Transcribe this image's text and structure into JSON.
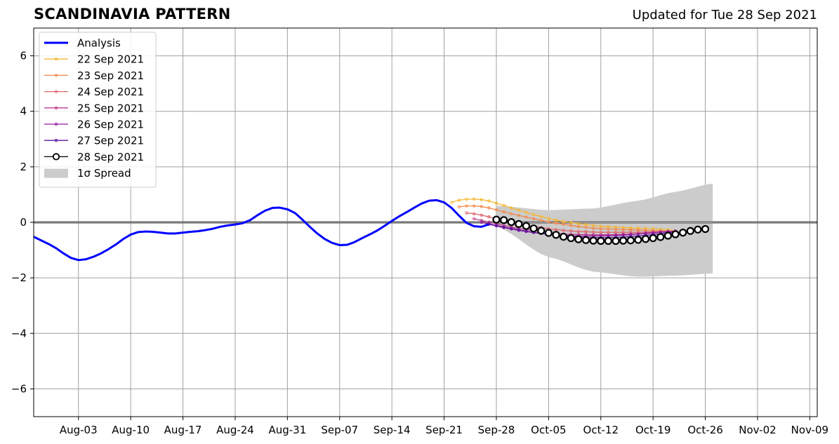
{
  "header": {
    "title": "SCANDINAVIA PATTERN",
    "updated": "Updated for Tue 28 Sep 2021"
  },
  "colors": {
    "analysis": "#0000ff",
    "spread": "#cccccc",
    "grid": "#a0a0a0",
    "zero_line": "#555555"
  },
  "chart_data": {
    "type": "line",
    "title": "SCANDINAVIA PATTERN",
    "xlabel": "",
    "ylabel": "",
    "xlim": [
      "2021-07-28",
      "2021-11-10"
    ],
    "ylim": [
      -7,
      7
    ],
    "grid": true,
    "legend_position": "upper-left",
    "x_ticks": [
      "Aug-03",
      "Aug-10",
      "Aug-17",
      "Aug-24",
      "Aug-31",
      "Sep-07",
      "Sep-14",
      "Sep-21",
      "Sep-28",
      "Oct-05",
      "Oct-12",
      "Oct-19",
      "Oct-26",
      "Nov-02",
      "Nov-09"
    ],
    "x_tick_dates": [
      "2021-08-03",
      "2021-08-10",
      "2021-08-17",
      "2021-08-24",
      "2021-08-31",
      "2021-09-07",
      "2021-09-14",
      "2021-09-21",
      "2021-09-28",
      "2021-10-05",
      "2021-10-12",
      "2021-10-19",
      "2021-10-26",
      "2021-11-02",
      "2021-11-09"
    ],
    "y_ticks": [
      -6,
      -4,
      -2,
      0,
      2,
      4,
      6
    ],
    "y_tick_labels": [
      "−6",
      "−4",
      "−2",
      "0",
      "2",
      "4",
      "6"
    ],
    "analysis": {
      "name": "Analysis",
      "color": "#0000ff",
      "points": [
        [
          "2021-07-28",
          -0.52
        ],
        [
          "2021-07-29",
          -0.65
        ],
        [
          "2021-07-30",
          -0.78
        ],
        [
          "2021-07-31",
          -0.93
        ],
        [
          "2021-08-01",
          -1.12
        ],
        [
          "2021-08-02",
          -1.28
        ],
        [
          "2021-08-03",
          -1.36
        ],
        [
          "2021-08-04",
          -1.33
        ],
        [
          "2021-08-05",
          -1.24
        ],
        [
          "2021-08-06",
          -1.12
        ],
        [
          "2021-08-07",
          -0.97
        ],
        [
          "2021-08-08",
          -0.8
        ],
        [
          "2021-08-09",
          -0.6
        ],
        [
          "2021-08-10",
          -0.44
        ],
        [
          "2021-08-11",
          -0.35
        ],
        [
          "2021-08-12",
          -0.33
        ],
        [
          "2021-08-13",
          -0.34
        ],
        [
          "2021-08-14",
          -0.37
        ],
        [
          "2021-08-15",
          -0.4
        ],
        [
          "2021-08-16",
          -0.4
        ],
        [
          "2021-08-17",
          -0.37
        ],
        [
          "2021-08-18",
          -0.34
        ],
        [
          "2021-08-19",
          -0.32
        ],
        [
          "2021-08-20",
          -0.28
        ],
        [
          "2021-08-21",
          -0.23
        ],
        [
          "2021-08-22",
          -0.16
        ],
        [
          "2021-08-23",
          -0.11
        ],
        [
          "2021-08-24",
          -0.08
        ],
        [
          "2021-08-25",
          -0.03
        ],
        [
          "2021-08-26",
          0.08
        ],
        [
          "2021-08-27",
          0.26
        ],
        [
          "2021-08-28",
          0.42
        ],
        [
          "2021-08-29",
          0.52
        ],
        [
          "2021-08-30",
          0.53
        ],
        [
          "2021-08-31",
          0.47
        ],
        [
          "2021-09-01",
          0.34
        ],
        [
          "2021-09-02",
          0.1
        ],
        [
          "2021-09-03",
          -0.16
        ],
        [
          "2021-09-04",
          -0.4
        ],
        [
          "2021-09-05",
          -0.6
        ],
        [
          "2021-09-06",
          -0.74
        ],
        [
          "2021-09-07",
          -0.82
        ],
        [
          "2021-09-08",
          -0.81
        ],
        [
          "2021-09-09",
          -0.71
        ],
        [
          "2021-09-10",
          -0.57
        ],
        [
          "2021-09-11",
          -0.44
        ],
        [
          "2021-09-12",
          -0.3
        ],
        [
          "2021-09-13",
          -0.13
        ],
        [
          "2021-09-14",
          0.05
        ],
        [
          "2021-09-15",
          0.22
        ],
        [
          "2021-09-16",
          0.37
        ],
        [
          "2021-09-17",
          0.53
        ],
        [
          "2021-09-18",
          0.68
        ],
        [
          "2021-09-19",
          0.78
        ],
        [
          "2021-09-20",
          0.8
        ],
        [
          "2021-09-21",
          0.72
        ],
        [
          "2021-09-22",
          0.52
        ],
        [
          "2021-09-23",
          0.24
        ],
        [
          "2021-09-24",
          -0.02
        ],
        [
          "2021-09-25",
          -0.14
        ],
        [
          "2021-09-26",
          -0.16
        ],
        [
          "2021-09-27",
          -0.07
        ]
      ]
    },
    "forecasts": [
      {
        "name": "22 Sep 2021",
        "color": "#f5b731",
        "start": "2021-09-22",
        "values": [
          0.72,
          0.8,
          0.83,
          0.84,
          0.82,
          0.77,
          0.69,
          0.61,
          0.52,
          0.44,
          0.36,
          0.28,
          0.21,
          0.14,
          0.08,
          0.03,
          -0.01,
          -0.05,
          -0.08,
          -0.11,
          -0.14,
          -0.16,
          -0.17,
          -0.19,
          -0.2,
          -0.21,
          -0.22,
          -0.23,
          -0.25,
          -0.27,
          -0.3
        ]
      },
      {
        "name": "23 Sep 2021",
        "color": "#f1884c",
        "start": "2021-09-23",
        "values": [
          0.56,
          0.59,
          0.59,
          0.57,
          0.52,
          0.45,
          0.38,
          0.31,
          0.25,
          0.19,
          0.13,
          0.07,
          0.02,
          -0.03,
          -0.07,
          -0.11,
          -0.15,
          -0.18,
          -0.21,
          -0.23,
          -0.24,
          -0.25,
          -0.26,
          -0.27,
          -0.28,
          -0.29,
          -0.3,
          -0.31,
          -0.32,
          -0.33
        ]
      },
      {
        "name": "24 Sep 2021",
        "color": "#e1626b",
        "start": "2021-09-24",
        "values": [
          0.34,
          0.31,
          0.26,
          0.2,
          0.13,
          0.07,
          0.01,
          -0.05,
          -0.1,
          -0.15,
          -0.19,
          -0.23,
          -0.26,
          -0.29,
          -0.31,
          -0.33,
          -0.34,
          -0.35,
          -0.36,
          -0.36,
          -0.36,
          -0.36,
          -0.36,
          -0.36,
          -0.35,
          -0.34,
          -0.33,
          -0.32,
          -0.31
        ]
      },
      {
        "name": "25 Sep 2021",
        "color": "#bf3c8a",
        "start": "2021-09-25",
        "values": [
          0.13,
          0.07,
          0.01,
          -0.05,
          -0.11,
          -0.17,
          -0.22,
          -0.26,
          -0.3,
          -0.34,
          -0.37,
          -0.4,
          -0.42,
          -0.43,
          -0.44,
          -0.44,
          -0.45,
          -0.45,
          -0.45,
          -0.44,
          -0.43,
          -0.42,
          -0.41,
          -0.39,
          -0.37,
          -0.35,
          -0.33,
          -0.31
        ]
      },
      {
        "name": "26 Sep 2021",
        "color": "#9018a0",
        "start": "2021-09-26",
        "values": [
          0.0,
          -0.07,
          -0.13,
          -0.19,
          -0.24,
          -0.29,
          -0.33,
          -0.37,
          -0.4,
          -0.43,
          -0.45,
          -0.47,
          -0.48,
          -0.49,
          -0.49,
          -0.49,
          -0.49,
          -0.48,
          -0.47,
          -0.46,
          -0.44,
          -0.42,
          -0.4,
          -0.38,
          -0.36,
          -0.34,
          -0.32
        ]
      },
      {
        "name": "27 Sep 2021",
        "color": "#5b12a2",
        "start": "2021-09-27",
        "values": [
          -0.05,
          -0.11,
          -0.17,
          -0.22,
          -0.27,
          -0.32,
          -0.36,
          -0.4,
          -0.44,
          -0.47,
          -0.49,
          -0.51,
          -0.53,
          -0.54,
          -0.55,
          -0.55,
          -0.55,
          -0.54,
          -0.53,
          -0.51,
          -0.49,
          -0.47,
          -0.44,
          -0.41,
          -0.38,
          -0.35
        ]
      }
    ],
    "current_forecast": {
      "name": "28 Sep 2021",
      "color": "#000000",
      "fill": "#ffffff",
      "start": "2021-09-28",
      "values": [
        0.1,
        0.08,
        0.01,
        -0.06,
        -0.13,
        -0.22,
        -0.3,
        -0.38,
        -0.45,
        -0.52,
        -0.57,
        -0.61,
        -0.64,
        -0.66,
        -0.67,
        -0.67,
        -0.67,
        -0.66,
        -0.65,
        -0.63,
        -0.6,
        -0.57,
        -0.53,
        -0.48,
        -0.43,
        -0.37,
        -0.31,
        -0.26,
        -0.24
      ]
    },
    "spread": {
      "name": "1σ Spread",
      "color": "#cccccc",
      "start": "2021-09-28",
      "end": "2021-10-27",
      "upper": [
        [
          0,
          0.6
        ],
        [
          7,
          0.44
        ],
        [
          13,
          0.5
        ],
        [
          19,
          0.78
        ],
        [
          24,
          1.1
        ],
        [
          29,
          1.4
        ]
      ],
      "lower": [
        [
          0,
          -0.15
        ],
        [
          7,
          -1.25
        ],
        [
          13,
          -1.78
        ],
        [
          19,
          -1.96
        ],
        [
          24,
          -1.92
        ],
        [
          29,
          -1.84
        ]
      ]
    }
  }
}
